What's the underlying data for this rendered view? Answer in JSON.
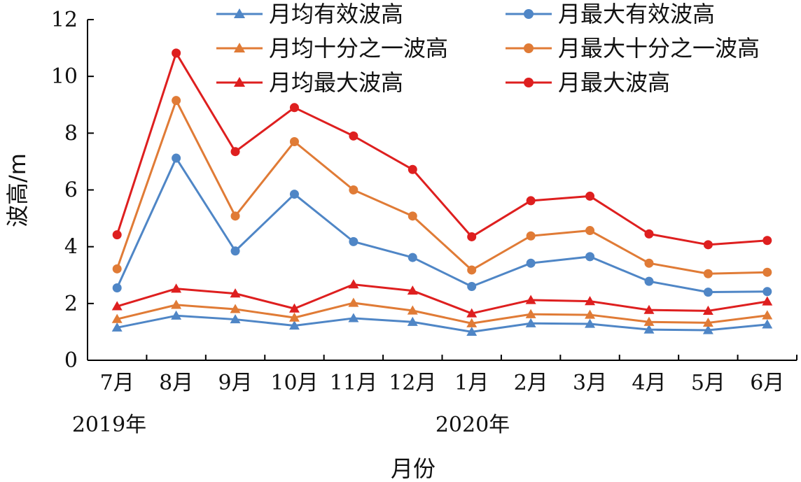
{
  "chart_data": {
    "type": "line",
    "xlabel": "月份",
    "ylabel": "波高/m",
    "ylim": [
      0,
      12
    ],
    "yticks": [
      "0",
      "2",
      "4",
      "6",
      "8",
      "10",
      "12"
    ],
    "categories": [
      "7月",
      "8月",
      "9月",
      "10月",
      "11月",
      "12月",
      "1月",
      "2月",
      "3月",
      "4月",
      "5月",
      "6月"
    ],
    "year_labels": [
      "2019年",
      "2020年"
    ],
    "grid": false,
    "legend_position": "top",
    "series": [
      {
        "name": "月均有效波高",
        "color": "#4F86C6",
        "marker": "triangle",
        "values": [
          1.15,
          1.57,
          1.44,
          1.22,
          1.48,
          1.35,
          1.0,
          1.3,
          1.28,
          1.08,
          1.06,
          1.26
        ]
      },
      {
        "name": "月最大有效波高",
        "color": "#4F86C6",
        "marker": "circle",
        "values": [
          2.55,
          7.12,
          3.85,
          5.85,
          4.18,
          3.62,
          2.6,
          3.42,
          3.65,
          2.78,
          2.4,
          2.42
        ]
      },
      {
        "name": "月均十分之一波高",
        "color": "#E07B36",
        "marker": "triangle",
        "values": [
          1.45,
          1.95,
          1.8,
          1.5,
          2.02,
          1.75,
          1.3,
          1.62,
          1.6,
          1.35,
          1.32,
          1.58
        ]
      },
      {
        "name": "月最大十分之一波高",
        "color": "#E07B36",
        "marker": "circle",
        "values": [
          3.22,
          9.15,
          5.08,
          7.7,
          6.0,
          5.08,
          3.18,
          4.38,
          4.57,
          3.42,
          3.05,
          3.1
        ]
      },
      {
        "name": "月均最大波高",
        "color": "#DE1F1F",
        "marker": "triangle",
        "values": [
          1.9,
          2.52,
          2.35,
          1.82,
          2.67,
          2.45,
          1.65,
          2.12,
          2.08,
          1.77,
          1.74,
          2.07
        ]
      },
      {
        "name": "月最大波高",
        "color": "#DE1F1F",
        "marker": "circle",
        "values": [
          4.42,
          10.82,
          7.35,
          8.9,
          7.9,
          6.72,
          4.35,
          5.62,
          5.78,
          4.45,
          4.07,
          4.22
        ]
      }
    ]
  }
}
